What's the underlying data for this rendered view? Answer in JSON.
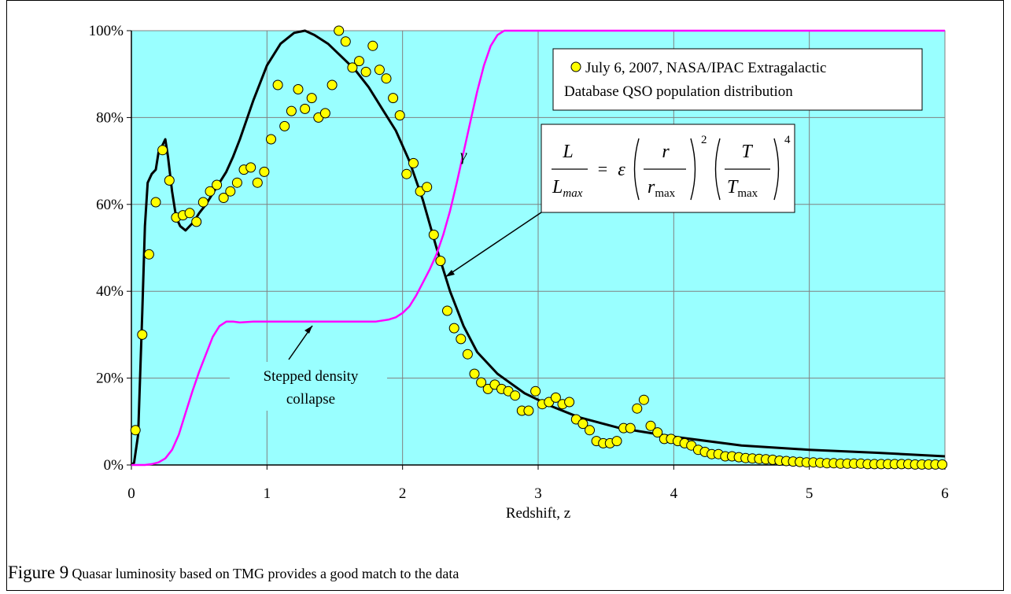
{
  "caption": {
    "figure_label": "Figure 9",
    "text": "Quasar luminosity based on TMG provides a good match to the data"
  },
  "chart_data": {
    "type": "scatter",
    "xlabel": "Redshift, z",
    "ylabel": "",
    "xlim": [
      0,
      6
    ],
    "ylim": [
      0,
      100
    ],
    "x_ticks": [
      "0",
      "1",
      "2",
      "3",
      "4",
      "5",
      "6"
    ],
    "y_ticks": [
      "0%",
      "20%",
      "40%",
      "60%",
      "80%",
      "100%"
    ],
    "grid": true,
    "plot_background": "#99ffff",
    "legend": {
      "placement": "top-right",
      "entries": [
        {
          "line1": "July 6, 2007, NASA/IPAC Extragalactic",
          "line2": "Database QSO population distribution"
        }
      ]
    },
    "annotations": {
      "gamma_label": "γ",
      "stepped_line1": "Stepped density",
      "stepped_line2": "collapse",
      "equation": {
        "L": "L",
        "Lmax_base": "L",
        "Lmax_sub": "max",
        "equals": "=",
        "epsilon": "ε",
        "r": "r",
        "rmax_base": "r",
        "rmax_sub": "max",
        "T": "T",
        "Tmax_base": "T",
        "Tmax_sub": "max",
        "exp2": "2",
        "exp4": "4"
      }
    },
    "series": [
      {
        "kind": "points",
        "color": "#ffff00",
        "x": [
          0.03,
          0.08,
          0.13,
          0.18,
          0.23,
          0.28,
          0.33,
          0.38,
          0.43,
          0.48,
          0.53,
          0.58,
          0.63,
          0.68,
          0.73,
          0.78,
          0.83,
          0.88,
          0.93,
          0.98,
          1.03,
          1.08,
          1.13,
          1.18,
          1.23,
          1.28,
          1.33,
          1.38,
          1.43,
          1.48,
          1.53,
          1.58,
          1.63,
          1.68,
          1.73,
          1.78,
          1.83,
          1.88,
          1.93,
          1.98,
          2.03,
          2.08,
          2.13,
          2.18,
          2.23,
          2.28,
          2.33,
          2.38,
          2.43,
          2.48,
          2.53,
          2.58,
          2.63,
          2.68,
          2.73,
          2.78,
          2.83,
          2.88,
          2.93,
          2.98,
          3.03,
          3.08,
          3.13,
          3.18,
          3.23,
          3.28,
          3.33,
          3.38,
          3.43,
          3.48,
          3.53,
          3.58,
          3.63,
          3.68,
          3.73,
          3.78,
          3.83,
          3.88,
          3.93,
          3.98,
          4.03,
          4.08,
          4.13,
          4.18,
          4.23,
          4.28,
          4.33,
          4.38,
          4.43,
          4.48,
          4.53,
          4.58,
          4.63,
          4.68,
          4.73,
          4.78,
          4.83,
          4.88,
          4.93,
          4.98,
          5.03,
          5.08,
          5.13,
          5.18,
          5.23,
          5.28,
          5.33,
          5.38,
          5.43,
          5.48,
          5.53,
          5.58,
          5.63,
          5.68,
          5.73,
          5.78,
          5.83,
          5.88,
          5.93,
          5.98
        ],
        "y": [
          8,
          30,
          48.5,
          60.5,
          72.5,
          65.5,
          57,
          57.5,
          58,
          56,
          60.5,
          63,
          64.5,
          61.5,
          63,
          65,
          68,
          68.5,
          65,
          67.5,
          75,
          87.5,
          78,
          81.5,
          86.5,
          82,
          84.5,
          80,
          81,
          87.5,
          100,
          97.5,
          91.5,
          93,
          90.5,
          96.5,
          91,
          89,
          84.5,
          80.5,
          67,
          69.5,
          63,
          64,
          53,
          47,
          35.5,
          31.5,
          29,
          25.5,
          21,
          19,
          17.5,
          18.5,
          17.5,
          17,
          16,
          12.5,
          12.5,
          17,
          14,
          14.5,
          15.5,
          14,
          14.5,
          10.5,
          9.5,
          8,
          5.5,
          5,
          5,
          5.5,
          8.5,
          8.5,
          13,
          15,
          9,
          7.5,
          6,
          6,
          5.5,
          5,
          4.5,
          3.5,
          3,
          2.5,
          2.5,
          2,
          2,
          1.8,
          1.6,
          1.5,
          1.4,
          1.3,
          1.2,
          1,
          0.9,
          0.8,
          0.7,
          0.6,
          0.6,
          0.5,
          0.4,
          0.4,
          0.3,
          0.3,
          0.3,
          0.3,
          0.2,
          0.2,
          0.2,
          0.2,
          0.2,
          0.2,
          0.2,
          0.1,
          0.1,
          0.1,
          0.1,
          0.1
        ]
      },
      {
        "kind": "line",
        "color": "#000000",
        "x": [
          0,
          0.02,
          0.05,
          0.08,
          0.1,
          0.12,
          0.15,
          0.18,
          0.2,
          0.22,
          0.25,
          0.27,
          0.3,
          0.33,
          0.36,
          0.4,
          0.43,
          0.46,
          0.5,
          0.55,
          0.6,
          0.65,
          0.7,
          0.75,
          0.8,
          0.9,
          1,
          1.1,
          1.2,
          1.28,
          1.35,
          1.45,
          1.55,
          1.65,
          1.75,
          1.85,
          1.95,
          2.05,
          2.15,
          2.25,
          2.35,
          2.45,
          2.55,
          2.7,
          2.9,
          3.1,
          3.3,
          3.6,
          4,
          4.5,
          5,
          5.5,
          6
        ],
        "y": [
          0,
          0.5,
          7,
          35,
          55,
          65,
          67,
          68,
          72,
          73,
          75,
          71,
          63,
          57,
          55,
          54,
          55,
          56,
          58,
          60,
          62.5,
          65,
          67.5,
          71,
          75,
          84,
          92,
          97,
          99.5,
          100,
          99,
          97,
          94,
          91,
          87,
          82,
          77,
          70,
          61,
          50,
          40,
          32,
          26,
          21,
          16.5,
          13.5,
          11,
          8.5,
          6.5,
          4.5,
          3.5,
          2.8,
          2
        ]
      },
      {
        "kind": "line",
        "color": "#ff00ff",
        "x": [
          0,
          0.05,
          0.1,
          0.15,
          0.2,
          0.25,
          0.3,
          0.35,
          0.4,
          0.45,
          0.5,
          0.55,
          0.6,
          0.65,
          0.7,
          0.75,
          0.8,
          0.9,
          1,
          1.2,
          1.4,
          1.6,
          1.8,
          1.9,
          1.95,
          2,
          2.05,
          2.1,
          2.15,
          2.2,
          2.25,
          2.3,
          2.35,
          2.4,
          2.45,
          2.5,
          2.55,
          2.6,
          2.65,
          2.7,
          2.75,
          2.8,
          2.9,
          3,
          3.5,
          4,
          4.5,
          5,
          5.5,
          6
        ],
        "y": [
          0,
          0,
          0,
          0.2,
          0.6,
          1.5,
          3.5,
          7,
          12,
          17,
          21.5,
          25.5,
          29.5,
          32,
          33,
          33,
          32.8,
          33,
          33,
          33,
          33,
          33,
          33,
          33.5,
          34,
          35,
          36.5,
          39,
          42,
          45,
          48.5,
          53,
          58.5,
          65,
          72,
          79,
          86,
          92,
          96.5,
          99,
          100,
          100,
          100,
          100,
          100,
          100,
          100,
          100,
          100,
          100
        ]
      }
    ]
  }
}
